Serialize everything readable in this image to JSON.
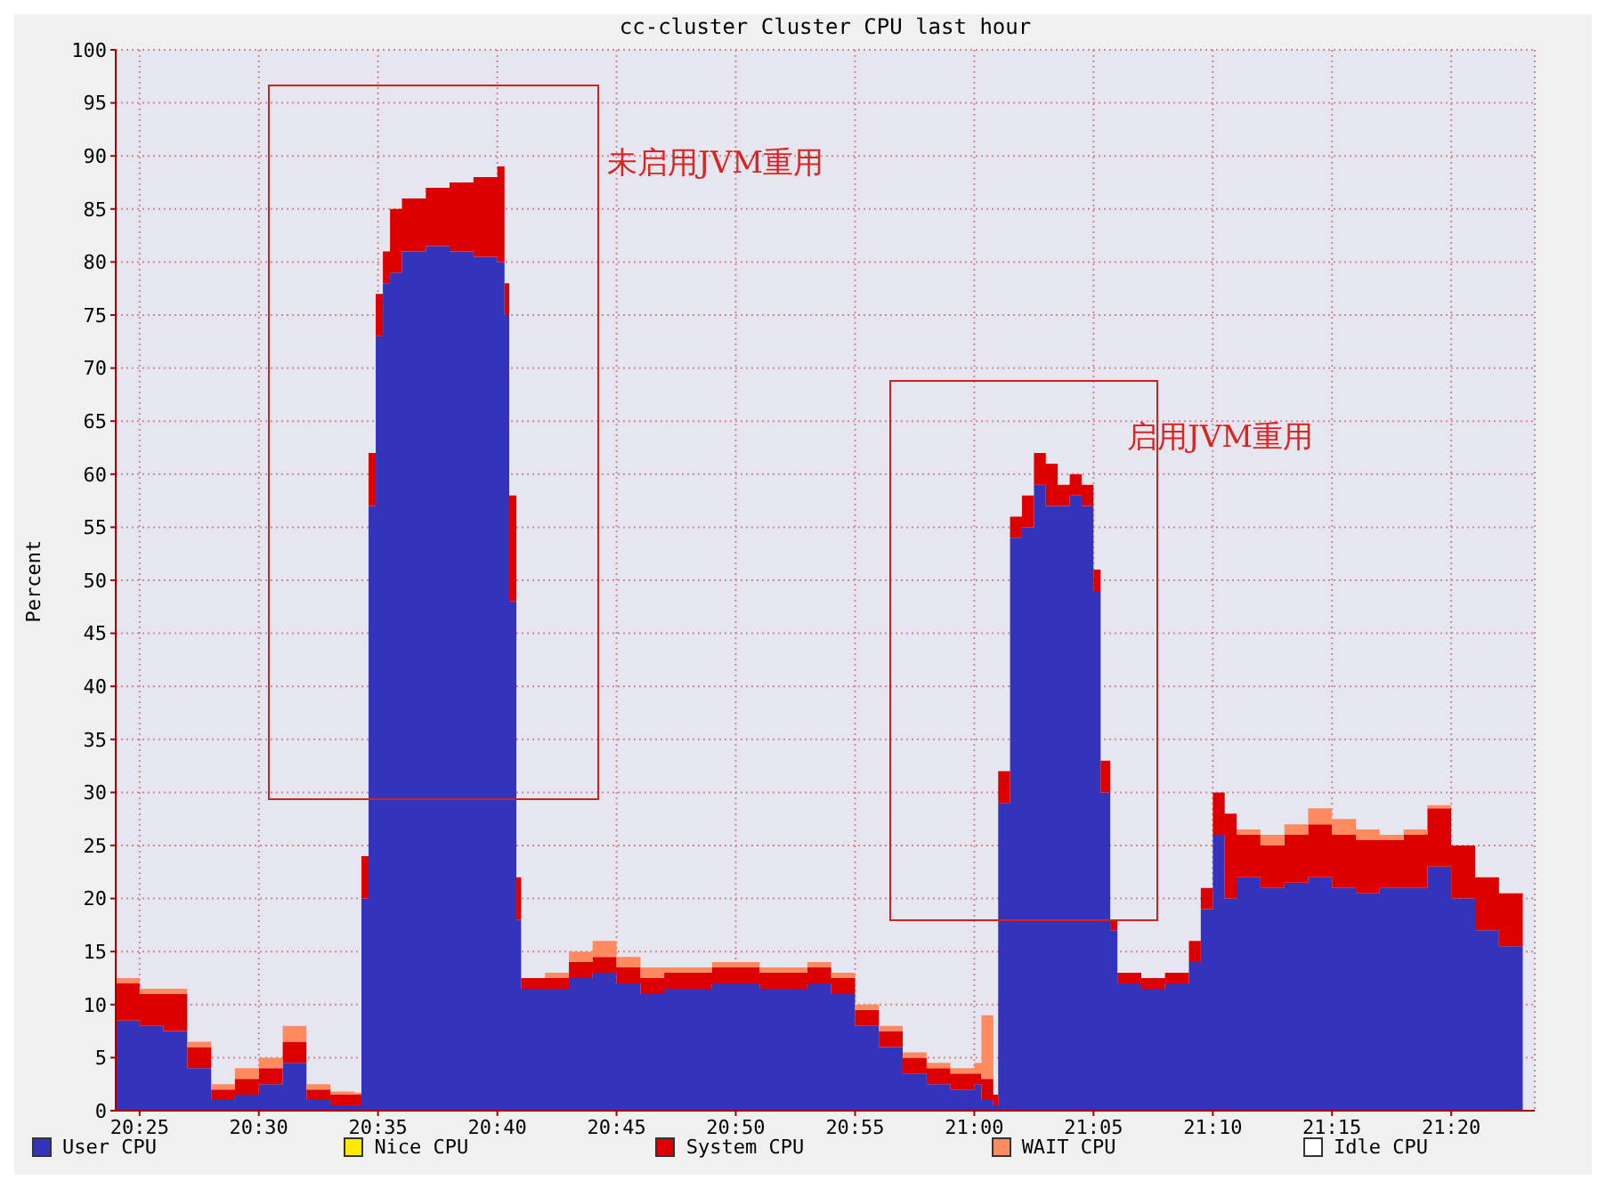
{
  "chart_data": {
    "type": "area",
    "title": "cc-cluster Cluster CPU last hour",
    "ylabel": "Percent",
    "stacked": true,
    "legend": "bottom",
    "grid": true,
    "annotations": [
      "未启用JVM重用",
      "启用JVM重用"
    ],
    "x": [
      20.4,
      20.4167,
      20.4333,
      20.45,
      20.4667,
      20.4833,
      20.5,
      20.5167,
      20.5333,
      20.55,
      20.5667,
      20.5717,
      20.5767,
      20.5817,
      20.5867,
      20.5917,
      20.6,
      20.6167,
      20.6333,
      20.65,
      20.6667,
      20.6717,
      20.675,
      20.68,
      20.6833,
      20.7,
      20.7167,
      20.7333,
      20.75,
      20.7667,
      20.7833,
      20.8,
      20.8167,
      20.8333,
      20.85,
      20.8667,
      20.8833,
      20.9,
      20.9167,
      20.9333,
      20.95,
      20.9667,
      20.9833,
      21.0,
      21.005,
      21.0133,
      21.0167,
      21.025,
      21.0333,
      21.0417,
      21.05,
      21.0583,
      21.0667,
      21.075,
      21.0833,
      21.0883,
      21.095,
      21.1,
      21.1167,
      21.1333,
      21.15,
      21.1583,
      21.1667,
      21.175,
      21.1833,
      21.2,
      21.2167,
      21.2333,
      21.25,
      21.2667,
      21.2833,
      21.3,
      21.3167,
      21.3333,
      21.35,
      21.3667,
      21.3833
    ],
    "series": [
      {
        "name": "User CPU",
        "color": "#3333bb",
        "values": [
          8.5,
          8,
          7.5,
          4,
          1,
          1.5,
          2.5,
          4.5,
          1,
          0.5,
          0.5,
          20,
          57,
          73,
          78,
          79,
          81,
          81.5,
          81,
          80.5,
          80,
          75,
          48,
          18,
          11.5,
          11.5,
          12.5,
          13,
          12,
          11,
          11.5,
          11.5,
          12,
          12,
          11.5,
          11.5,
          12,
          11,
          8,
          6,
          3.5,
          2.5,
          2,
          2.5,
          1,
          0.5,
          29,
          54,
          55,
          59,
          57,
          57,
          58,
          57,
          49,
          30,
          17,
          12,
          11.5,
          12,
          14,
          19,
          26,
          20,
          22,
          21,
          21.5,
          22,
          21,
          20.5,
          21,
          21,
          23,
          20,
          17,
          15.5,
          13
        ]
      },
      {
        "name": "Nice CPU",
        "color": "#ffea00",
        "values": [
          null,
          null,
          null,
          null,
          null,
          null,
          null,
          null,
          null,
          null,
          null,
          null,
          null,
          null,
          null,
          null,
          null,
          null,
          null,
          null,
          null,
          null,
          null,
          null,
          null,
          null,
          null,
          null,
          null,
          null,
          null,
          null,
          null,
          null,
          null,
          null,
          null,
          null,
          null,
          null,
          null,
          null,
          null,
          null,
          null,
          null,
          null,
          null,
          null,
          null,
          null,
          null,
          null,
          null,
          null,
          null,
          null,
          null,
          null,
          null,
          null,
          null,
          null,
          null,
          null,
          null,
          null,
          null,
          null,
          null,
          null,
          null,
          null,
          null,
          null,
          null,
          null
        ]
      },
      {
        "name": "System CPU",
        "color": "#dd0000",
        "values": [
          3.5,
          3,
          3.5,
          2,
          1,
          1.5,
          1.5,
          2,
          1,
          1,
          1,
          4,
          5,
          4,
          3,
          6,
          5,
          5.5,
          6.5,
          7.5,
          9,
          3,
          10,
          4,
          1,
          1,
          1.5,
          1.5,
          1.5,
          1.5,
          1.5,
          1.5,
          1.5,
          1.5,
          1.5,
          1.5,
          1.5,
          1.5,
          1.5,
          1.5,
          1.5,
          1.5,
          1.5,
          1,
          2,
          1,
          3,
          2,
          3,
          3,
          4,
          2,
          2,
          2,
          2,
          3,
          1,
          1,
          1,
          1,
          2,
          2,
          4,
          8,
          4,
          4,
          4.5,
          5,
          5,
          5,
          4.5,
          5,
          5.5,
          5,
          5,
          5,
          5
        ]
      },
      {
        "name": "WAIT CPU",
        "color": "#ff8a60",
        "values": [
          0.5,
          0.5,
          0.5,
          0.5,
          0.5,
          1,
          1,
          1.5,
          0.5,
          0.3,
          0.2,
          0,
          0,
          0,
          0,
          0,
          0,
          0,
          0,
          0,
          0,
          0,
          0,
          0,
          0,
          0.5,
          1,
          1.5,
          1,
          1,
          0.5,
          0.5,
          0.5,
          0.5,
          0.5,
          0.5,
          0.5,
          0.5,
          0.5,
          0.5,
          0.5,
          0.5,
          0.5,
          1,
          6,
          0,
          0,
          0,
          0,
          0,
          0,
          0,
          0,
          0,
          0,
          0,
          0,
          0,
          0,
          0,
          0,
          0,
          0,
          0,
          0.5,
          1,
          1,
          1.5,
          1.5,
          1,
          0.5,
          0.5,
          0.3,
          0,
          0,
          0,
          0
        ]
      },
      {
        "name": "Idle CPU",
        "color": "#ffffff",
        "values": [
          null,
          null,
          null,
          null,
          null,
          null,
          null,
          null,
          null,
          null,
          null,
          null,
          null,
          null,
          null,
          null,
          null,
          null,
          null,
          null,
          null,
          null,
          null,
          null,
          null,
          null,
          null,
          null,
          null,
          null,
          null,
          null,
          null,
          null,
          null,
          null,
          null,
          null,
          null,
          null,
          null,
          null,
          null,
          null,
          null,
          null,
          null,
          null,
          null,
          null,
          null,
          null,
          null,
          null,
          null,
          null,
          null,
          null,
          null,
          null,
          null,
          null,
          null,
          null,
          null,
          null,
          null,
          null,
          null,
          null,
          null,
          null,
          null,
          null,
          null,
          null,
          null
        ]
      }
    ],
    "xlim": [
      20.4,
      21.3917
    ],
    "xticks": [
      {
        "value": 20.4167,
        "label": "20:25"
      },
      {
        "value": 20.5,
        "label": "20:30"
      },
      {
        "value": 20.5833,
        "label": "20:35"
      },
      {
        "value": 20.6667,
        "label": "20:40"
      },
      {
        "value": 20.75,
        "label": "20:45"
      },
      {
        "value": 20.8333,
        "label": "20:50"
      },
      {
        "value": 20.9167,
        "label": "20:55"
      },
      {
        "value": 21.0,
        "label": "21:00"
      },
      {
        "value": 21.0833,
        "label": "21:05"
      },
      {
        "value": 21.1667,
        "label": "21:10"
      },
      {
        "value": 21.25,
        "label": "21:15"
      },
      {
        "value": 21.3333,
        "label": "21:20"
      }
    ],
    "ylim": [
      0,
      100
    ],
    "yticks": [
      0,
      5,
      10,
      15,
      20,
      25,
      30,
      35,
      40,
      45,
      50,
      55,
      60,
      65,
      70,
      75,
      80,
      85,
      90,
      95,
      100
    ]
  }
}
